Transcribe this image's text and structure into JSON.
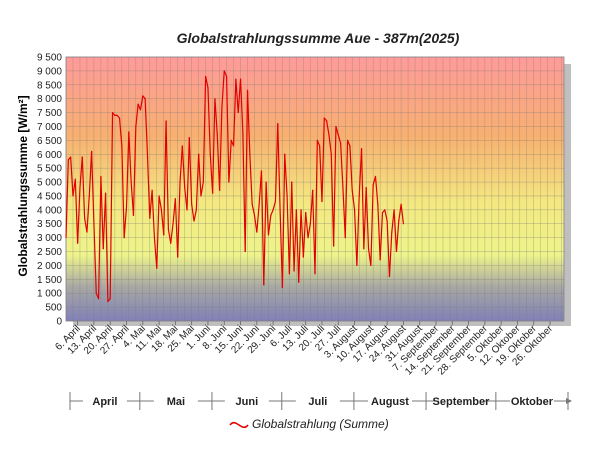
{
  "chart_data": {
    "type": "line",
    "title": "Globalstrahlungssumme Aue - 387m(2025)",
    "ylabel": "Globalstrahlungssumme [W/m²]",
    "ylim": [
      0,
      9500
    ],
    "yticks": [
      "0",
      "500",
      "1 000",
      "1 500",
      "2 000",
      "2 500",
      "3 000",
      "3 500",
      "4 000",
      "4 500",
      "5 000",
      "5 500",
      "6 000",
      "6 500",
      "7 000",
      "7 500",
      "8 000",
      "8 500",
      "9 000",
      "9 500"
    ],
    "x_tick_labels": [
      "6. April",
      "13. April",
      "20. April",
      "27. April",
      "4. Mai",
      "11. Mai",
      "18. Mai",
      "25. Mai",
      "1. Juni",
      "8. Juni",
      "15. Juni",
      "22. Juni",
      "29. Juni",
      "6. Juli",
      "13. Juli",
      "20. Juli",
      "27. Juli",
      "3. August",
      "10. August",
      "17. August",
      "24. August",
      "31. August",
      "7. September",
      "14. September",
      "21. September",
      "28. September",
      "5. Oktober",
      "12. Oktober",
      "19. Oktober",
      "26. Oktober"
    ],
    "months": [
      "April",
      "Mai",
      "Juni",
      "Juli",
      "August",
      "September",
      "Oktober"
    ],
    "grid": true,
    "legend_position": "bottom",
    "series": [
      {
        "name": "Globalstrahlung (Summe)",
        "color": "#e00000",
        "x_start": "2025-04-01",
        "values": [
          3000,
          5800,
          5900,
          4500,
          5100,
          2800,
          4800,
          5900,
          3700,
          3200,
          4500,
          6100,
          3500,
          1000,
          800,
          5200,
          2600,
          4600,
          700,
          800,
          7500,
          7400,
          7400,
          7300,
          6300,
          3000,
          4100,
          6800,
          5000,
          3800,
          7000,
          7800,
          7600,
          8100,
          8000,
          6000,
          3700,
          4700,
          3000,
          1900,
          4500,
          4000,
          3100,
          7200,
          3300,
          2800,
          3500,
          4400,
          2300,
          5000,
          6300,
          4800,
          4000,
          6600,
          4200,
          3600,
          4000,
          6000,
          4500,
          5000,
          8800,
          8400,
          6000,
          4600,
          8000,
          6700,
          4700,
          7700,
          9000,
          8800,
          5000,
          6500,
          6300,
          8700,
          7500,
          8700,
          6800,
          2500,
          8300,
          6000,
          4200,
          3800,
          3200,
          4200,
          5400,
          1300,
          5000,
          3100,
          3800,
          4000,
          4300,
          7100,
          4000,
          1200,
          6000,
          4500,
          1700,
          5000,
          1800,
          4000,
          1400,
          4000,
          2300,
          3900,
          3000,
          3500,
          4700,
          1700,
          6500,
          6300,
          4300,
          7300,
          7200,
          6700,
          6000,
          2700,
          7000,
          6700,
          6400,
          4800,
          3000,
          6500,
          6300,
          4700,
          4000,
          2000,
          4500,
          6200,
          2600,
          4800,
          2600,
          2000,
          4900,
          5200,
          4200,
          2200,
          3900,
          4000,
          3600,
          1600,
          3200,
          4000,
          2500,
          3600,
          4200,
          3500
        ]
      }
    ]
  }
}
